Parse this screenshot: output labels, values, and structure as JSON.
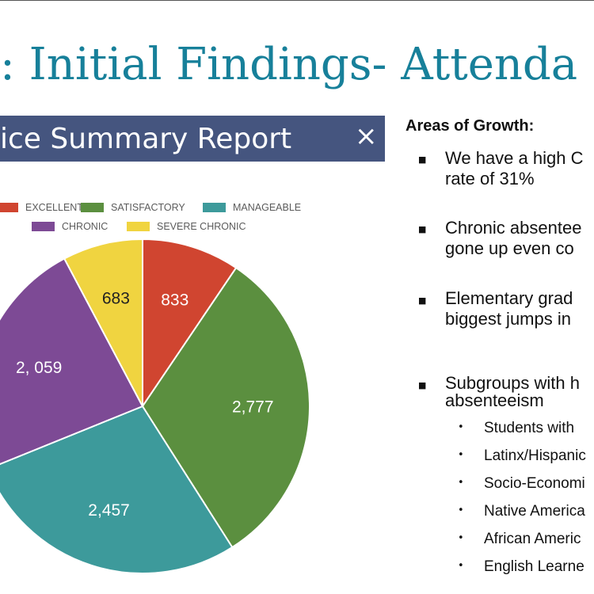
{
  "slide": {
    "title": ": Initial Findings- Attenda"
  },
  "report": {
    "title": "ice Summary Report",
    "close_icon": "×"
  },
  "colors": {
    "excellent": "#d04530",
    "satisfactory": "#5b8f3f",
    "manageable": "#3d9a9b",
    "chronic": "#7d4a95",
    "severe_chronic": "#f0d440",
    "title_accent": "#17809a",
    "report_bar": "#45557f"
  },
  "chart_data": {
    "type": "pie",
    "legend_position": "top",
    "labels": [
      "EXCELLENT",
      "SATISFACTORY",
      "MANAGEABLE",
      "CHRONIC",
      "SEVERE CHRONIC"
    ],
    "values": [
      833,
      2777,
      2457,
      2059,
      683
    ],
    "value_labels": [
      "833",
      "2,777",
      "2,457",
      "2, 059",
      "683"
    ]
  },
  "panel": {
    "heading": "Areas of Growth:",
    "bullets": [
      {
        "lines": [
          "We have a high C",
          "rate of 31%"
        ]
      },
      {
        "lines": [
          "Chronic absentee",
          "gone up even co"
        ]
      },
      {
        "lines": [
          "Elementary grad",
          "biggest jumps in"
        ]
      },
      {
        "lines": [
          "Subgroups with h",
          "absenteeism"
        ]
      }
    ],
    "subgroups": [
      "Students with",
      "Latinx/Hispanic",
      "Socio-Economi",
      "Native America",
      "African Americ",
      "English Learne"
    ]
  }
}
